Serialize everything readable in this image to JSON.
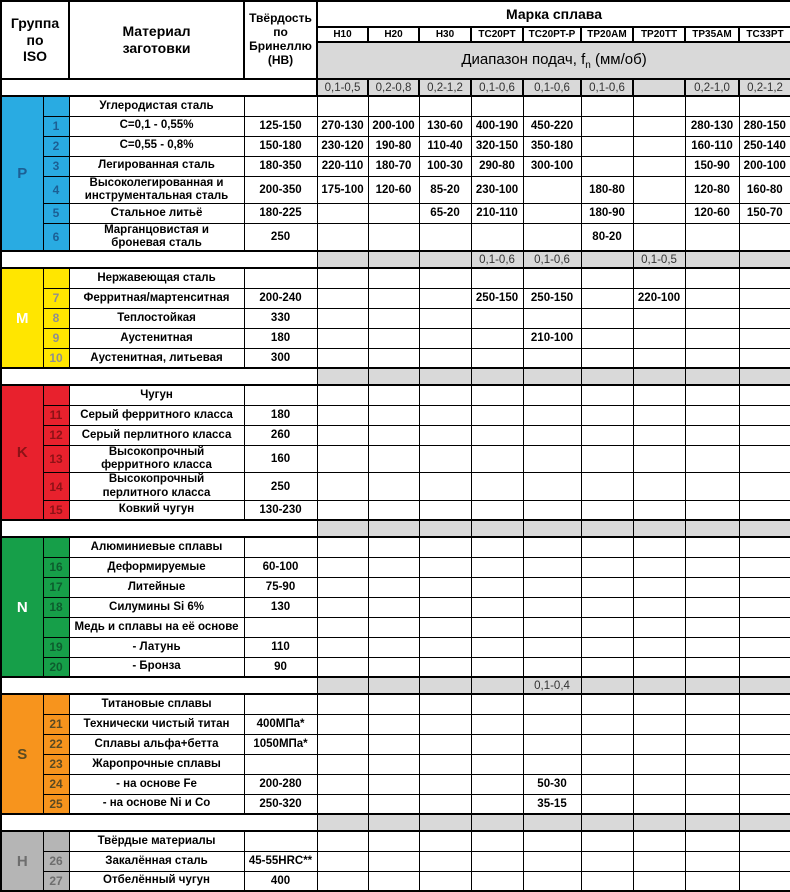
{
  "header": {
    "group_iso": "Группа\nпо\nISO",
    "material": "Материал\nзаготовки",
    "hardness": "Твёрдость\nпо\nБринеллю\n(НВ)",
    "alloy_group_title": "Марка сплава",
    "alloys": [
      "H10",
      "H20",
      "H30",
      "TC20PT",
      "TC20PT-P",
      "TP20AM",
      "TP20TT",
      "TP35AM",
      "TC33PT"
    ],
    "feed_title_prefix": "Диапазон подач, f",
    "feed_title_sub": "n",
    "feed_title_suffix": " (мм/об)",
    "feed_ranges": [
      "0,1-0,5",
      "0,2-0,8",
      "0,2-1,2",
      "0,1-0,6",
      "0,1-0,6",
      "0,1-0,6",
      "",
      "0,2-1,0",
      "0,2-1,2"
    ]
  },
  "groups": [
    {
      "letter": "P",
      "band_color": "#29abe2",
      "letter_color": "#1c5f94",
      "num_color": "#1c5f94",
      "rows": [
        {
          "num": "",
          "material": "Углеродистая сталь",
          "hardness": ""
        },
        {
          "num": "1",
          "material": "C=0,1 - 0,55%",
          "hardness": "125-150",
          "speeds": [
            "270-130",
            "200-100",
            "130-60",
            "400-190",
            "450-220",
            "",
            "",
            "280-130",
            "280-150"
          ]
        },
        {
          "num": "2",
          "material": "C=0,55 - 0,8%",
          "hardness": "150-180",
          "speeds": [
            "230-120",
            "190-80",
            "110-40",
            "320-150",
            "350-180",
            "",
            "",
            "160-110",
            "250-140"
          ]
        },
        {
          "num": "3",
          "material": "Легированная сталь",
          "hardness": "180-350",
          "speeds": [
            "220-110",
            "180-70",
            "100-30",
            "290-80",
            "300-100",
            "",
            "",
            "150-90",
            "200-100"
          ]
        },
        {
          "num": "4",
          "material": "Высоколегированная и\nинструментальная сталь",
          "hardness": "200-350",
          "speeds": [
            "175-100",
            "120-60",
            "85-20",
            "230-100",
            "",
            "180-80",
            "",
            "120-80",
            "160-80"
          ]
        },
        {
          "num": "5",
          "material": "Стальное литьё",
          "hardness": "180-225",
          "speeds": [
            "",
            "",
            "65-20",
            "210-110",
            "",
            "180-90",
            "",
            "120-60",
            "150-70"
          ]
        },
        {
          "num": "6",
          "material": "Марганцовистая и\nброневая сталь",
          "hardness": "250",
          "speeds": [
            "",
            "",
            "",
            "",
            "",
            "80-20",
            "",
            "",
            ""
          ]
        }
      ],
      "separator_feeds": [
        "",
        "",
        "",
        "0,1-0,6",
        "0,1-0,6",
        "",
        "0,1-0,5",
        "",
        ""
      ]
    },
    {
      "letter": "M",
      "band_color": "#ffe600",
      "letter_color": "#ffffff",
      "num_color": "#8f8f8f",
      "rows": [
        {
          "num": "",
          "material": "Нержавеющая сталь",
          "hardness": ""
        },
        {
          "num": "7",
          "material": "Ферритная/мартенситная",
          "hardness": "200-240",
          "speeds": [
            "",
            "",
            "",
            "250-150",
            "250-150",
            "",
            "220-100",
            "",
            ""
          ]
        },
        {
          "num": "8",
          "material": "Теплостойкая",
          "hardness": "330"
        },
        {
          "num": "9",
          "material": "Аустенитная",
          "hardness": "180",
          "speeds": [
            "",
            "",
            "",
            "",
            "210-100",
            "",
            "",
            "",
            ""
          ]
        },
        {
          "num": "10",
          "material": "Аустенитная, литьевая",
          "hardness": "300"
        }
      ],
      "separator_feeds": [
        "",
        "",
        "",
        "",
        "",
        "",
        "",
        "",
        ""
      ]
    },
    {
      "letter": "K",
      "band_color": "#e8212d",
      "letter_color": "#8c1216",
      "num_color": "#8c1216",
      "rows": [
        {
          "num": "",
          "material": "Чугун",
          "hardness": ""
        },
        {
          "num": "11",
          "material": "Серый ферритного класса",
          "hardness": "180"
        },
        {
          "num": "12",
          "material": "Серый перлитного класса",
          "hardness": "260"
        },
        {
          "num": "13",
          "material": "Высокопрочный\nферритного класса",
          "hardness": "160"
        },
        {
          "num": "14",
          "material": "Высокопрочный\nперлитного класса",
          "hardness": "250"
        },
        {
          "num": "15",
          "material": "Ковкий чугун",
          "hardness": "130-230"
        }
      ],
      "separator_feeds": [
        "",
        "",
        "",
        "",
        "",
        "",
        "",
        "",
        ""
      ]
    },
    {
      "letter": "N",
      "band_color": "#169f49",
      "letter_color": "#ffffff",
      "num_color": "#0d5c2e",
      "rows": [
        {
          "num": "",
          "material": "Алюминиевые сплавы",
          "hardness": ""
        },
        {
          "num": "16",
          "material": "Деформируемые",
          "hardness": "60-100"
        },
        {
          "num": "17",
          "material": "Литейные",
          "hardness": "75-90"
        },
        {
          "num": "18",
          "material": "Силумины Si  6%",
          "hardness": "130"
        },
        {
          "num": "",
          "material": "Медь и сплавы на её основе",
          "hardness": ""
        },
        {
          "num": "19",
          "material": "- Латунь",
          "hardness": "110"
        },
        {
          "num": "20",
          "material": "- Бронза",
          "hardness": "90"
        }
      ],
      "separator_feeds": [
        "",
        "",
        "",
        "",
        "0,1-0,4",
        "",
        "",
        "",
        ""
      ]
    },
    {
      "letter": "S",
      "band_color": "#f7941d",
      "letter_color": "#5b4a22",
      "num_color": "#5b4a22",
      "rows": [
        {
          "num": "",
          "material": "Титановые сплавы",
          "hardness": ""
        },
        {
          "num": "21",
          "material": "Технически чистый титан",
          "hardness": "400МПа*"
        },
        {
          "num": "22",
          "material": "Сплавы альфа+бетта",
          "hardness": "1050МПа*"
        },
        {
          "num": "23",
          "material": "Жаропрочные сплавы",
          "hardness": ""
        },
        {
          "num": "24",
          "material": "- на основе Fe",
          "hardness": "200-280",
          "speeds": [
            "",
            "",
            "",
            "",
            "50-30",
            "",
            "",
            "",
            ""
          ]
        },
        {
          "num": "25",
          "material": "- на основе Ni и Co",
          "hardness": "250-320",
          "speeds": [
            "",
            "",
            "",
            "",
            "35-15",
            "",
            "",
            "",
            ""
          ]
        }
      ],
      "separator_feeds": [
        "",
        "",
        "",
        "",
        "",
        "",
        "",
        "",
        ""
      ]
    },
    {
      "letter": "H",
      "band_color": "#b5b5b5",
      "letter_color": "#6e6e6e",
      "num_color": "#6e6e6e",
      "rows": [
        {
          "num": "",
          "material": "Твёрдые материалы",
          "hardness": ""
        },
        {
          "num": "26",
          "material": "Закалённая сталь",
          "hardness": "45-55HRC**"
        },
        {
          "num": "27",
          "material": "Отбелённый чугун",
          "hardness": "400"
        }
      ]
    }
  ]
}
